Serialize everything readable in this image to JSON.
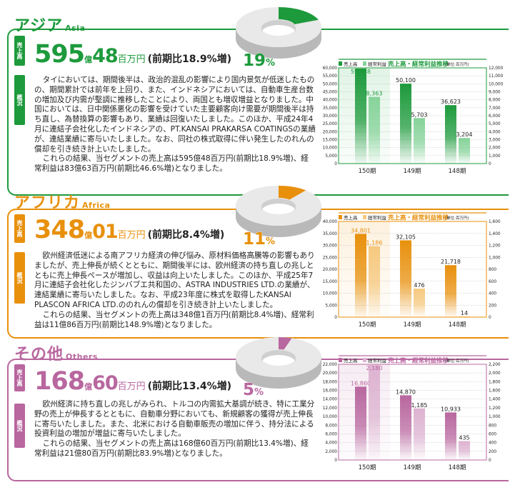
{
  "sections": [
    {
      "id": "asia",
      "title": "アジア",
      "title_en": "Asia",
      "color": "#1d9a3c",
      "light": "#86d39a",
      "tab_sales": "売上高",
      "tab_overview": "概況",
      "headline": {
        "oku": "595",
        "oku_unit": "億",
        "man": "48",
        "man_unit": "百万円",
        "compare": "(前期比18.9%増)"
      },
      "share": 19,
      "share_label": "19",
      "share_unit": "%",
      "paragraphs": [
        "タイにおいては、期間後半は、政治的混乱の影響により国内景気が低迷したものの、期間累計では前年を上回り、また、インドネシアにおいては、自動車生産台数の増加及び内需が堅調に推移したことにより、両国とも増収増益となりました。中国においては、日中関係悪化の影響を受けていた主要顧客向け需要が期間後半は持ち直し、為替換算の影響もあり、業績は回復いたしました。このほか、平成24年4月に連結子会社化したインドネシアの、PT.KANSAI PRAKARSA COATINGSの業績が、連結業績に寄与いたしました。なお、同社の株式取得に伴い発生したのれんの償却を引き続き計上いたしました。",
        "これらの結果、当セグメントの売上高は595億48百万円(前期比18.9%増)、経常利益は83億63百万円(前期比46.6%増)となりました。"
      ]
    },
    {
      "id": "africa",
      "title": "アフリカ",
      "title_en": "Africa",
      "color": "#e8900c",
      "light": "#f6c97f",
      "tab_sales": "売上高",
      "tab_overview": "概況",
      "headline": {
        "oku": "348",
        "oku_unit": "億",
        "man": "01",
        "man_unit": "百万円",
        "compare": "(前期比8.4%増)"
      },
      "share": 11,
      "share_label": "11",
      "share_unit": "%",
      "paragraphs": [
        "欧州経済低迷による南アフリカ経済の伸び悩み、原材料価格高騰等の影響もありましたが、売上伸長が続くとともに、期間後半には、欧州経済の持ち直しの兆しとともに売上伸長ペースが増加し、収益は向上いたしました。このほか、平成25年7月に連結子会社化したジンバブエ共和国の、ASTRA INDUSTRIES LTD.の業績が、連結業績に寄与いたしました。なお、平成23年度に株式を取得したKANSAI PLASCON AFRICA LTD.ののれんの償却を引き続き計上いたしました。",
        "これらの結果、当セグメントの売上高は348億1百万円(前期比8.4%増)、経常利益は11億86百万円(前期比148.9%増)となりました。"
      ]
    },
    {
      "id": "others",
      "title": "その他",
      "title_en": "Others",
      "color": "#b8679f",
      "light": "#ddb3d1",
      "tab_sales": "売上高",
      "tab_overview": "概況",
      "headline": {
        "oku": "168",
        "oku_unit": "億",
        "man": "60",
        "man_unit": "百万円",
        "compare": "(前期比13.4%増)"
      },
      "share": 5,
      "share_label": "5",
      "share_unit": "%",
      "paragraphs": [
        "欧州経済に持ち直しの兆しがみられ、トルコの内需拡大基調が続き、特に工業分野の売上が伸長するとともに、自動車分野においても、新規顧客の獲得が売上伸長に寄与いたしました。また、北米における自動車販売の増加に伴う、持分法による投資利益の増加が増益に寄与いたしました。",
        "これらの結果、当セグメントの売上高は168億60百万円(前期比13.4%増)、経常利益は21億80百万円(前期比83.9%増)となりました。"
      ]
    }
  ],
  "chart_data": [
    {
      "type": "bar",
      "title": "売上高・経常利益推移",
      "unit_note": "(単位:百万円)",
      "categories": [
        "150期",
        "149期",
        "148期"
      ],
      "series": [
        {
          "name": "売上高",
          "axis": "left",
          "values": [
            59548,
            50100,
            36623
          ],
          "labels": [
            "59,548",
            "50,100",
            "36,623"
          ]
        },
        {
          "name": "経常利益",
          "axis": "right",
          "values": [
            8363,
            5703,
            3204
          ],
          "labels": [
            "8,363",
            "5,703",
            "3,204"
          ]
        }
      ],
      "ylim_left": [
        0,
        60000
      ],
      "ylim_right": [
        0,
        12000
      ],
      "left_ticks": [
        "0",
        "5,000",
        "10,000",
        "15,000",
        "20,000",
        "25,000",
        "30,000",
        "35,000",
        "40,000",
        "45,000",
        "50,000",
        "55,000",
        "60,000"
      ],
      "right_ticks": [
        "0",
        "1,000",
        "2,000",
        "3,000",
        "4,000",
        "5,000",
        "6,000",
        "7,000",
        "8,000",
        "9,000",
        "10,000",
        "11,000",
        "12,000"
      ],
      "grid": true,
      "legend": "top-left"
    },
    {
      "type": "bar",
      "title": "売上高・経常利益推移",
      "unit_note": "(単位:百万円)",
      "categories": [
        "150期",
        "149期",
        "148期"
      ],
      "series": [
        {
          "name": "売上高",
          "axis": "left",
          "values": [
            34801,
            32105,
            21718
          ],
          "labels": [
            "34,801",
            "32,105",
            "21,718"
          ]
        },
        {
          "name": "経常利益",
          "axis": "right",
          "values": [
            1186,
            476,
            14
          ],
          "labels": [
            "1,186",
            "476",
            "14"
          ]
        }
      ],
      "ylim_left": [
        0,
        40000
      ],
      "ylim_right": [
        0,
        1600
      ],
      "left_ticks": [
        "0",
        "5,000",
        "10,000",
        "15,000",
        "20,000",
        "25,000",
        "30,000",
        "35,000",
        "40,000"
      ],
      "right_ticks": [
        "0",
        "200",
        "400",
        "600",
        "800",
        "1,000",
        "1,200",
        "1,400",
        "1,600"
      ],
      "grid": true,
      "legend": "top-left"
    },
    {
      "type": "bar",
      "title": "売上高・経常利益推移",
      "unit_note": "(単位:百万円)",
      "categories": [
        "150期",
        "149期",
        "148期"
      ],
      "series": [
        {
          "name": "売上高",
          "axis": "left",
          "values": [
            16860,
            14870,
            10933
          ],
          "labels": [
            "16,860",
            "14,870",
            "10,933"
          ]
        },
        {
          "name": "経常利益",
          "axis": "right",
          "values": [
            2180,
            1185,
            435
          ],
          "labels": [
            "2,180",
            "1,185",
            "435"
          ]
        }
      ],
      "ylim_left": [
        0,
        22000
      ],
      "ylim_right": [
        0,
        2200
      ],
      "left_ticks": [
        "0",
        "2,000",
        "4,000",
        "6,000",
        "8,000",
        "10,000",
        "12,000",
        "14,000",
        "16,000",
        "18,000",
        "20,000",
        "22,000"
      ],
      "right_ticks": [
        "0",
        "200",
        "400",
        "600",
        "800",
        "1,000",
        "1,200",
        "1,400",
        "1,600",
        "1,800",
        "2,000",
        "2,200"
      ],
      "grid": true,
      "legend": "top-left"
    }
  ]
}
